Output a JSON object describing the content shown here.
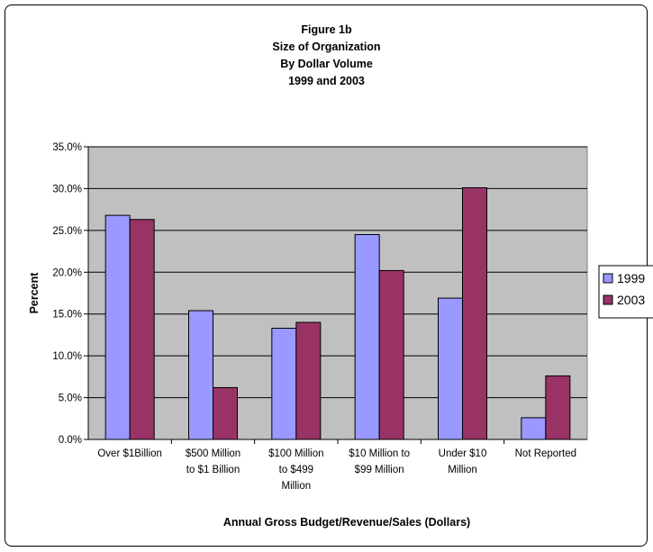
{
  "chart_data": {
    "type": "bar",
    "title": [
      "Figure 1b",
      "Size of Organization",
      "By Dollar Volume",
      "1999 and 2003"
    ],
    "xlabel": "Annual Gross Budget/Revenue/Sales (Dollars)",
    "ylabel": "Percent",
    "ylim": [
      0,
      35
    ],
    "ytick_labels": [
      "0.0%",
      "5.0%",
      "10.0%",
      "15.0%",
      "20.0%",
      "25.0%",
      "30.0%",
      "35.0%"
    ],
    "categories": [
      [
        "Over $1Billion"
      ],
      [
        "$500 Million",
        "to $1 Billion"
      ],
      [
        "$100 Million",
        "to $499",
        "Million"
      ],
      [
        "$10 Million to",
        "$99 Million"
      ],
      [
        "Under $10",
        "Million"
      ],
      [
        "Not Reported"
      ]
    ],
    "series": [
      {
        "name": "1999",
        "values": [
          26.8,
          15.4,
          13.3,
          24.5,
          16.9,
          2.6
        ]
      },
      {
        "name": "2003",
        "values": [
          26.3,
          6.2,
          14.0,
          20.2,
          30.1,
          7.6
        ]
      }
    ],
    "legend_position": "right",
    "grid": true,
    "colors": {
      "series": [
        "#9999ff",
        "#993366"
      ],
      "plot_bg": "#c0c0c0"
    }
  }
}
